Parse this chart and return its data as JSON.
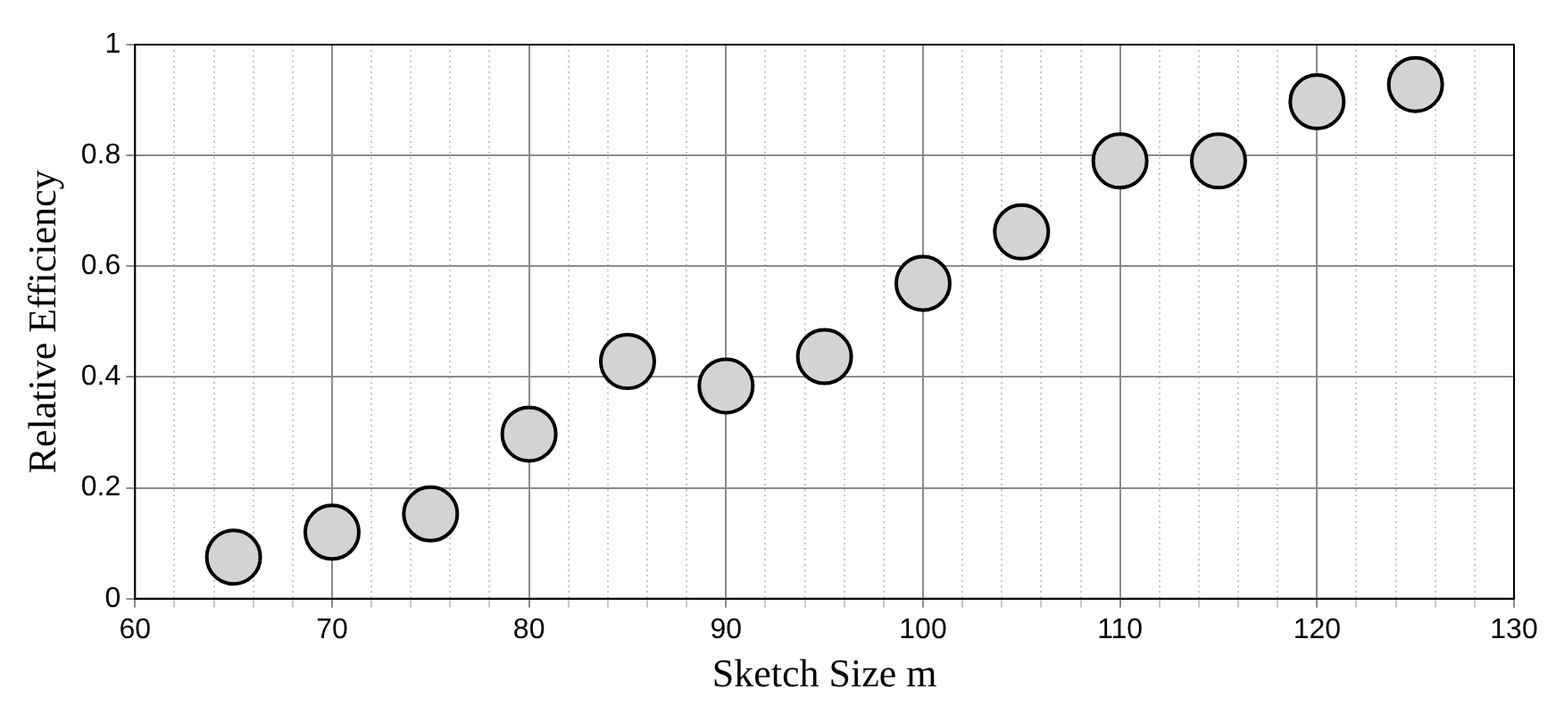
{
  "chart_data": {
    "type": "scatter",
    "xlabel": "Sketch Size m",
    "ylabel": "Relative Efficiency",
    "x": [
      65,
      70,
      75,
      80,
      85,
      90,
      95,
      100,
      105,
      110,
      115,
      120,
      125
    ],
    "series": [
      {
        "color": "#d3d3d3",
        "values": [
          0.075,
          0.12,
          0.153,
          0.297,
          0.428,
          0.384,
          0.437,
          0.569,
          0.662,
          0.79,
          0.79,
          0.897,
          0.928
        ]
      }
    ],
    "xlim": [
      60,
      130
    ],
    "xticks": [
      60,
      {
        "value": 62,
        "label": null
      },
      {
        "value": 64,
        "label": null
      },
      {
        "value": 66,
        "label": null
      },
      {
        "value": 68,
        "label": null
      },
      70,
      {
        "value": 72,
        "label": null
      },
      {
        "value": 74,
        "label": null
      },
      {
        "value": 76,
        "label": null
      },
      {
        "value": 78,
        "label": null
      },
      80,
      {
        "value": 82,
        "label": null
      },
      {
        "value": 84,
        "label": null
      },
      {
        "value": 86,
        "label": null
      },
      {
        "value": 88,
        "label": null
      },
      90,
      {
        "value": 92,
        "label": null
      },
      {
        "value": 94,
        "label": null
      },
      {
        "value": 96,
        "label": null
      },
      {
        "value": 98,
        "label": null
      },
      100,
      {
        "value": 102,
        "label": null
      },
      {
        "value": 104,
        "label": null
      },
      {
        "value": 106,
        "label": null
      },
      {
        "value": 108,
        "label": null
      },
      110,
      {
        "value": 112,
        "label": null
      },
      {
        "value": 114,
        "label": null
      },
      {
        "value": 116,
        "label": null
      },
      {
        "value": 118,
        "label": null
      },
      120,
      {
        "value": 122,
        "label": null
      },
      {
        "value": 124,
        "label": null
      },
      {
        "value": 126,
        "label": null
      },
      {
        "value": 128,
        "label": null
      },
      130
    ],
    "ylim": [
      0,
      1
    ],
    "yticks": [
      0,
      0.2,
      0.4,
      0.6,
      0.8,
      1
    ],
    "grid": true,
    "marker": "circle"
  }
}
